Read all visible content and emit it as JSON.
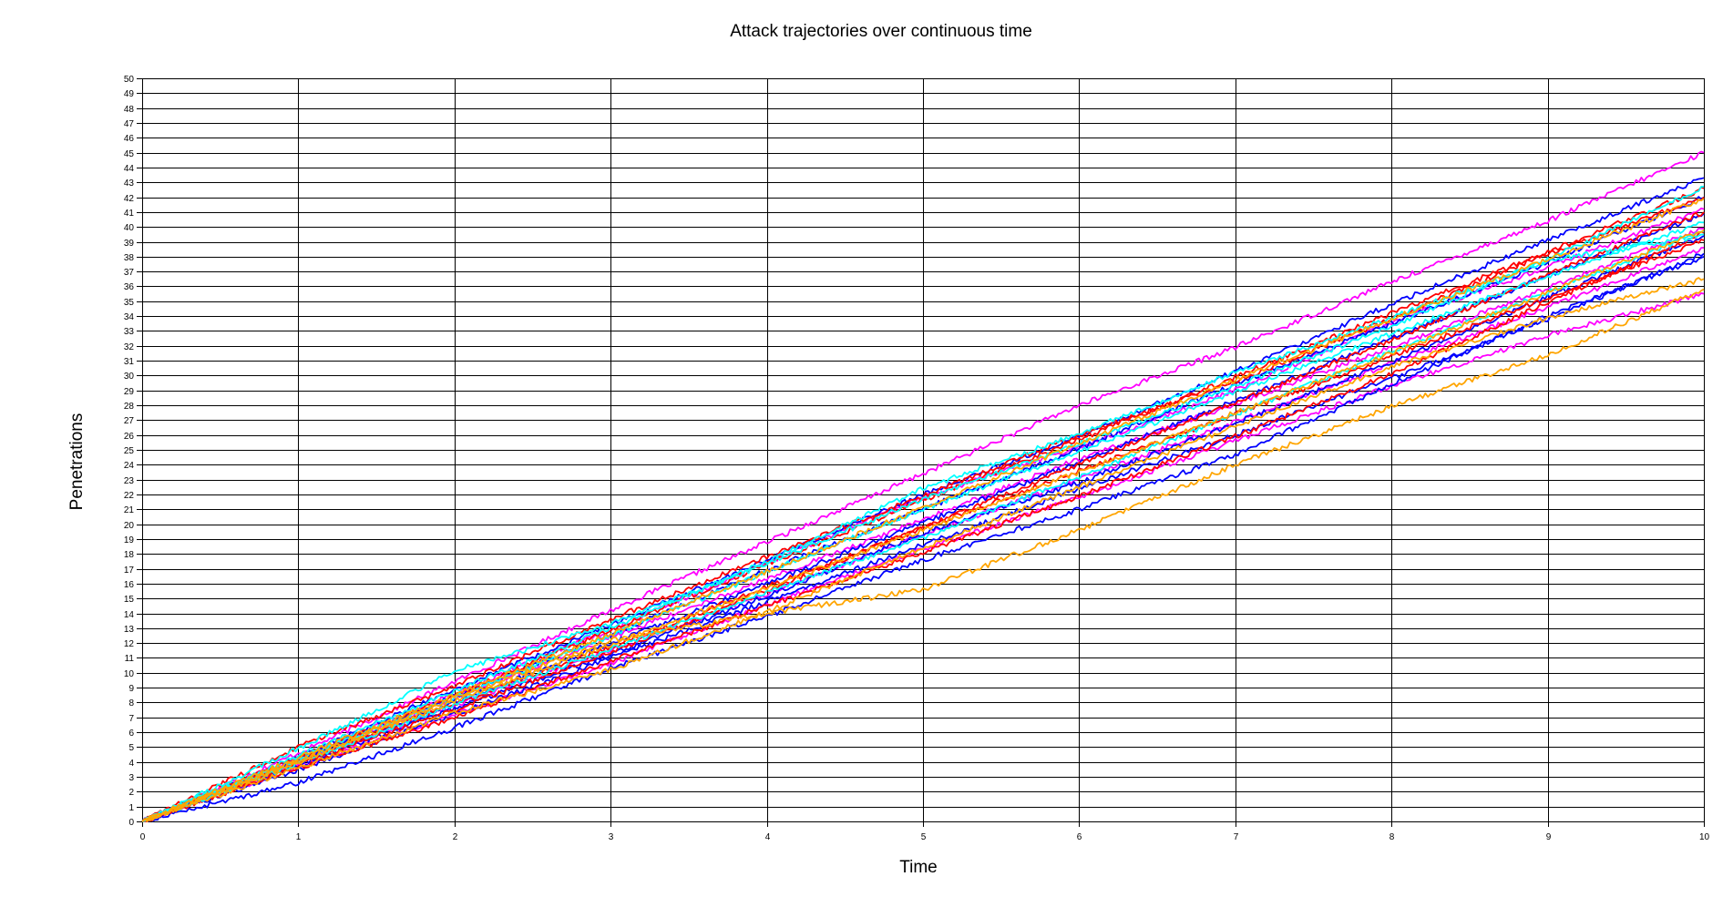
{
  "chart_data": {
    "type": "line",
    "title": "Attack trajectories over continuous time",
    "xlabel": "Time",
    "ylabel": "Penetrations",
    "xlim": [
      0,
      10
    ],
    "ylim": [
      0,
      50
    ],
    "x_ticks": [
      0,
      1,
      2,
      3,
      4,
      5,
      6,
      7,
      8,
      9,
      10
    ],
    "y_ticks": [
      0,
      1,
      2,
      3,
      4,
      5,
      6,
      7,
      8,
      9,
      10,
      11,
      12,
      13,
      14,
      15,
      16,
      17,
      18,
      19,
      20,
      21,
      22,
      23,
      24,
      25,
      26,
      27,
      28,
      29,
      30,
      31,
      32,
      33,
      34,
      35,
      36,
      37,
      38,
      39,
      40,
      41,
      42,
      43,
      44,
      45,
      46,
      47,
      48,
      49,
      50
    ],
    "grid": true,
    "legend": "none",
    "series": [
      {
        "color": "#ff00ff",
        "x": [
          0,
          1,
          2,
          3,
          4,
          5,
          6,
          7,
          8,
          9,
          10
        ],
        "y": [
          0,
          4.6,
          9.4,
          14.2,
          18.8,
          23.4,
          28.0,
          31.9,
          36.3,
          40.4,
          45.0
        ]
      },
      {
        "color": "#ff00ff",
        "x": [
          0,
          1,
          2,
          3,
          4,
          5,
          6,
          7,
          8,
          9,
          10
        ],
        "y": [
          0,
          4.2,
          8.6,
          12.9,
          17.4,
          21.8,
          25.2,
          29.0,
          33.6,
          37.3,
          41.2
        ]
      },
      {
        "color": "#ff00ff",
        "x": [
          0,
          1,
          2,
          3,
          4,
          5,
          6,
          7,
          8,
          9,
          10
        ],
        "y": [
          0,
          3.7,
          7.2,
          10.6,
          14.6,
          18.3,
          21.8,
          25.6,
          29.3,
          32.7,
          35.5
        ]
      },
      {
        "color": "#ff00ff",
        "x": [
          0,
          1,
          2,
          3,
          4,
          5,
          6,
          7,
          8,
          9,
          10
        ],
        "y": [
          0,
          3.9,
          7.8,
          11.5,
          15.3,
          19.3,
          23.0,
          26.9,
          30.8,
          34.6,
          38.6
        ]
      },
      {
        "color": "#ff00ff",
        "x": [
          0,
          1,
          2,
          3,
          4,
          5,
          6,
          7,
          8,
          9,
          10
        ],
        "y": [
          0,
          4.1,
          8.3,
          12.4,
          16.3,
          20.3,
          24.4,
          28.1,
          31.9,
          35.9,
          39.9
        ]
      },
      {
        "color": "#0000ff",
        "x": [
          0,
          1,
          2,
          3,
          4,
          5,
          6,
          7,
          8,
          9,
          10
        ],
        "y": [
          0,
          4.3,
          8.9,
          13.2,
          17.6,
          22.0,
          25.9,
          30.3,
          34.8,
          39.1,
          43.3
        ]
      },
      {
        "color": "#0000ff",
        "x": [
          0,
          1,
          2,
          3,
          4,
          5,
          6,
          7,
          8,
          9,
          10
        ],
        "y": [
          0,
          2.6,
          6.3,
          10.3,
          13.8,
          17.6,
          21.0,
          24.7,
          29.4,
          34.0,
          38.0
        ]
      },
      {
        "color": "#0000ff",
        "x": [
          0,
          1,
          2,
          3,
          4,
          5,
          6,
          7,
          8,
          9,
          10
        ],
        "y": [
          0,
          3.8,
          7.6,
          11.2,
          15.2,
          19.4,
          22.8,
          26.8,
          30.9,
          35.3,
          39.4
        ]
      },
      {
        "color": "#0000ff",
        "x": [
          0,
          1,
          2,
          3,
          4,
          5,
          6,
          7,
          8,
          9,
          10
        ],
        "y": [
          0,
          4.2,
          8.4,
          12.6,
          16.9,
          21.0,
          25.1,
          29.4,
          33.5,
          37.6,
          42.0
        ]
      },
      {
        "color": "#0000ff",
        "x": [
          0,
          1,
          2,
          3,
          4,
          5,
          6,
          7,
          8,
          9,
          10
        ],
        "y": [
          0,
          3.5,
          7.2,
          11.0,
          14.8,
          18.6,
          22.4,
          26.0,
          29.8,
          33.8,
          38.2
        ]
      },
      {
        "color": "#0000ff",
        "x": [
          0,
          1,
          2,
          3,
          4,
          5,
          6,
          7,
          8,
          9,
          10
        ],
        "y": [
          0,
          4.0,
          8.0,
          12.0,
          16.0,
          20.1,
          24.2,
          28.3,
          32.5,
          36.7,
          40.9
        ]
      },
      {
        "color": "#ff0000",
        "x": [
          0,
          1,
          2,
          3,
          4,
          5,
          6,
          7,
          8,
          9,
          10
        ],
        "y": [
          0,
          5.0,
          9.1,
          13.6,
          17.8,
          21.9,
          26.0,
          29.6,
          33.8,
          38.2,
          42.0
        ]
      },
      {
        "color": "#ff0000",
        "x": [
          0,
          1,
          2,
          3,
          4,
          5,
          6,
          7,
          8,
          9,
          10
        ],
        "y": [
          0,
          3.9,
          7.5,
          11.4,
          15.5,
          19.8,
          24.0,
          28.2,
          32.4,
          36.8,
          41.0
        ]
      },
      {
        "color": "#ff0000",
        "x": [
          0,
          1,
          2,
          3,
          4,
          5,
          6,
          7,
          8,
          9,
          10
        ],
        "y": [
          0,
          3.6,
          7.0,
          10.8,
          14.5,
          18.1,
          21.9,
          25.9,
          30.1,
          34.9,
          39.6
        ]
      },
      {
        "color": "#ff0000",
        "x": [
          0,
          1,
          2,
          3,
          4,
          5,
          6,
          7,
          8,
          9,
          10
        ],
        "y": [
          0,
          4.3,
          8.5,
          12.9,
          17.3,
          21.6,
          25.7,
          29.9,
          34.2,
          38.3,
          42.6
        ]
      },
      {
        "color": "#ff0000",
        "x": [
          0,
          1,
          2,
          3,
          4,
          5,
          6,
          7,
          8,
          9,
          10
        ],
        "y": [
          0,
          4.0,
          7.9,
          11.7,
          15.8,
          19.7,
          23.6,
          27.4,
          31.3,
          35.2,
          39.1
        ]
      },
      {
        "color": "#00ffff",
        "x": [
          0,
          1,
          2,
          3,
          4,
          5,
          6,
          7,
          8,
          9,
          10
        ],
        "y": [
          0,
          4.9,
          10.1,
          13.3,
          17.3,
          21.7,
          25.4,
          29.3,
          33.3,
          37.8,
          42.7
        ]
      },
      {
        "color": "#00ffff",
        "x": [
          0,
          1,
          2,
          3,
          4,
          5,
          6,
          7,
          8,
          9,
          10
        ],
        "y": [
          0,
          4.2,
          8.3,
          12.5,
          16.8,
          21.0,
          24.9,
          28.9,
          32.8,
          36.7,
          40.3
        ]
      },
      {
        "color": "#00ffff",
        "x": [
          0,
          1,
          2,
          3,
          4,
          5,
          6,
          7,
          8,
          9,
          10
        ],
        "y": [
          0,
          3.9,
          7.9,
          11.6,
          15.4,
          19.1,
          23.2,
          27.4,
          31.6,
          35.6,
          39.7
        ]
      },
      {
        "color": "#00ffff",
        "x": [
          0,
          1,
          2,
          3,
          4,
          5,
          6,
          7,
          8,
          9,
          10
        ],
        "y": [
          0,
          4.4,
          8.8,
          13.0,
          17.5,
          22.4,
          26.1,
          30.2,
          33.9,
          37.7,
          39.5
        ]
      },
      {
        "color": "#ffa500",
        "x": [
          0,
          1,
          2,
          3,
          4,
          5,
          6,
          7,
          8,
          9,
          10
        ],
        "y": [
          0,
          4.1,
          8.3,
          12.2,
          14.0,
          15.6,
          19.6,
          24.0,
          27.9,
          31.4,
          35.8
        ]
      },
      {
        "color": "#ffa500",
        "x": [
          0,
          1,
          2,
          3,
          4,
          5,
          6,
          7,
          8,
          9,
          10
        ],
        "y": [
          0,
          3.6,
          7.3,
          10.2,
          14.1,
          18.4,
          22.5,
          26.6,
          30.6,
          33.9,
          36.5
        ]
      },
      {
        "color": "#ffa500",
        "x": [
          0,
          1,
          2,
          3,
          4,
          5,
          6,
          7,
          8,
          9,
          10
        ],
        "y": [
          0,
          4.3,
          8.5,
          12.6,
          16.8,
          21.1,
          25.4,
          29.7,
          33.8,
          37.8,
          41.9
        ]
      },
      {
        "color": "#ffa500",
        "x": [
          0,
          1,
          2,
          3,
          4,
          5,
          6,
          7,
          8,
          9,
          10
        ],
        "y": [
          0,
          4.0,
          8.1,
          11.9,
          15.7,
          19.6,
          23.5,
          27.5,
          31.5,
          35.6,
          39.8
        ]
      }
    ]
  }
}
